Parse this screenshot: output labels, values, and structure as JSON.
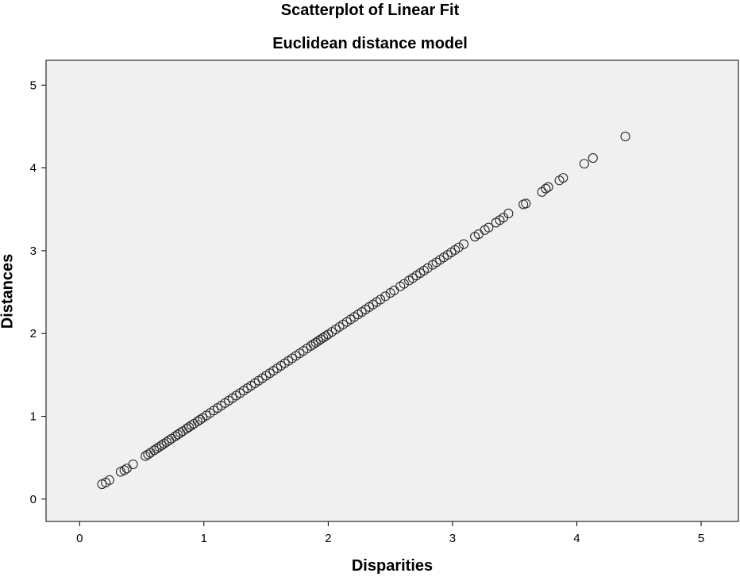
{
  "chart_data": {
    "type": "scatter",
    "title": "Scatterplot of Linear Fit",
    "subtitle": "Euclidean distance model",
    "xlabel": "Disparities",
    "ylabel": "Distances",
    "xlim": [
      -0.27,
      5.3
    ],
    "ylim": [
      -0.27,
      5.3
    ],
    "xticks": [
      "0",
      "1",
      "2",
      "3",
      "4",
      "5"
    ],
    "yticks": [
      "0",
      "1",
      "2",
      "3",
      "4",
      "5"
    ],
    "grid": false,
    "background_color": "#f0f0f0",
    "marker": "hollow-circle",
    "points": [
      [
        0.18,
        0.18
      ],
      [
        0.21,
        0.2
      ],
      [
        0.24,
        0.23
      ],
      [
        0.33,
        0.33
      ],
      [
        0.36,
        0.35
      ],
      [
        0.38,
        0.37
      ],
      [
        0.43,
        0.42
      ],
      [
        0.53,
        0.52
      ],
      [
        0.55,
        0.54
      ],
      [
        0.57,
        0.56
      ],
      [
        0.6,
        0.59
      ],
      [
        0.62,
        0.61
      ],
      [
        0.64,
        0.63
      ],
      [
        0.66,
        0.65
      ],
      [
        0.68,
        0.67
      ],
      [
        0.7,
        0.69
      ],
      [
        0.72,
        0.71
      ],
      [
        0.74,
        0.73
      ],
      [
        0.77,
        0.76
      ],
      [
        0.79,
        0.78
      ],
      [
        0.81,
        0.8
      ],
      [
        0.83,
        0.82
      ],
      [
        0.86,
        0.85
      ],
      [
        0.88,
        0.87
      ],
      [
        0.9,
        0.89
      ],
      [
        0.92,
        0.91
      ],
      [
        0.95,
        0.94
      ],
      [
        0.97,
        0.96
      ],
      [
        0.99,
        0.98
      ],
      [
        1.02,
        1.01
      ],
      [
        1.05,
        1.04
      ],
      [
        1.08,
        1.07
      ],
      [
        1.11,
        1.1
      ],
      [
        1.14,
        1.13
      ],
      [
        1.17,
        1.16
      ],
      [
        1.2,
        1.19
      ],
      [
        1.23,
        1.22
      ],
      [
        1.26,
        1.25
      ],
      [
        1.29,
        1.28
      ],
      [
        1.32,
        1.31
      ],
      [
        1.35,
        1.34
      ],
      [
        1.38,
        1.37
      ],
      [
        1.41,
        1.4
      ],
      [
        1.44,
        1.43
      ],
      [
        1.47,
        1.46
      ],
      [
        1.5,
        1.49
      ],
      [
        1.53,
        1.52
      ],
      [
        1.56,
        1.55
      ],
      [
        1.59,
        1.58
      ],
      [
        1.62,
        1.61
      ],
      [
        1.65,
        1.64
      ],
      [
        1.68,
        1.67
      ],
      [
        1.71,
        1.7
      ],
      [
        1.74,
        1.73
      ],
      [
        1.77,
        1.76
      ],
      [
        1.8,
        1.79
      ],
      [
        1.83,
        1.82
      ],
      [
        1.86,
        1.85
      ],
      [
        1.88,
        1.87
      ],
      [
        1.9,
        1.89
      ],
      [
        1.92,
        1.91
      ],
      [
        1.94,
        1.93
      ],
      [
        1.96,
        1.95
      ],
      [
        1.98,
        1.97
      ],
      [
        2.0,
        1.99
      ],
      [
        2.03,
        2.02
      ],
      [
        2.06,
        2.05
      ],
      [
        2.09,
        2.08
      ],
      [
        2.12,
        2.11
      ],
      [
        2.15,
        2.14
      ],
      [
        2.18,
        2.17
      ],
      [
        2.21,
        2.2
      ],
      [
        2.24,
        2.23
      ],
      [
        2.27,
        2.26
      ],
      [
        2.3,
        2.29
      ],
      [
        2.33,
        2.32
      ],
      [
        2.36,
        2.35
      ],
      [
        2.39,
        2.38
      ],
      [
        2.42,
        2.41
      ],
      [
        2.46,
        2.45
      ],
      [
        2.5,
        2.49
      ],
      [
        2.53,
        2.52
      ],
      [
        2.58,
        2.57
      ],
      [
        2.61,
        2.6
      ],
      [
        2.65,
        2.64
      ],
      [
        2.68,
        2.67
      ],
      [
        2.71,
        2.7
      ],
      [
        2.74,
        2.73
      ],
      [
        2.77,
        2.76
      ],
      [
        2.8,
        2.79
      ],
      [
        2.84,
        2.83
      ],
      [
        2.87,
        2.86
      ],
      [
        2.9,
        2.89
      ],
      [
        2.93,
        2.92
      ],
      [
        2.96,
        2.95
      ],
      [
        2.99,
        2.98
      ],
      [
        3.02,
        3.01
      ],
      [
        3.05,
        3.04
      ],
      [
        3.09,
        3.08
      ],
      [
        3.18,
        3.17
      ],
      [
        3.21,
        3.2
      ],
      [
        3.26,
        3.25
      ],
      [
        3.29,
        3.28
      ],
      [
        3.35,
        3.34
      ],
      [
        3.38,
        3.37
      ],
      [
        3.41,
        3.4
      ],
      [
        3.45,
        3.45
      ],
      [
        3.57,
        3.56
      ],
      [
        3.59,
        3.57
      ],
      [
        3.72,
        3.71
      ],
      [
        3.75,
        3.75
      ],
      [
        3.77,
        3.77
      ],
      [
        3.86,
        3.85
      ],
      [
        3.89,
        3.88
      ],
      [
        4.06,
        4.05
      ],
      [
        4.13,
        4.12
      ],
      [
        4.39,
        4.38
      ]
    ]
  }
}
